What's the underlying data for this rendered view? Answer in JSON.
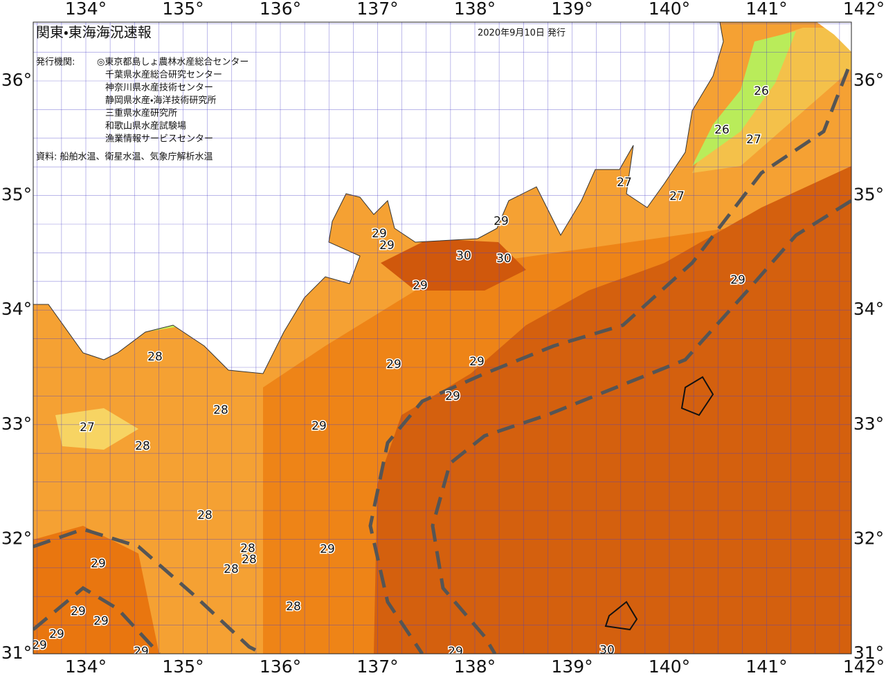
{
  "header": {
    "title": "関東・東海海況速報",
    "issued": "2020年9月10日 発行"
  },
  "issuers": {
    "label": "発行機関:",
    "names": [
      "◎東京都島しょ農林水産総合センター",
      "千葉県水産総合研究センター",
      "神奈川県水産技術センター",
      "静岡県水産・海洋技術研究所",
      "三重県水産研究所",
      "和歌山県水産試験場",
      "漁業情報サービスセンター"
    ]
  },
  "source": "資料: 船舶水温、衛星水温、気象庁解析水温",
  "longitude_labels": [
    {
      "value": 134,
      "label": "134°"
    },
    {
      "value": 135,
      "label": "135°"
    },
    {
      "value": 136,
      "label": "136°"
    },
    {
      "value": 137,
      "label": "137°"
    },
    {
      "value": 138,
      "label": "138°"
    },
    {
      "value": 139,
      "label": "139°"
    },
    {
      "value": 140,
      "label": "140°"
    },
    {
      "value": 141,
      "label": "141°"
    },
    {
      "value": 142,
      "label": "142°"
    }
  ],
  "latitude_labels": [
    {
      "value": 31,
      "label": "31°"
    },
    {
      "value": 32,
      "label": "32°"
    },
    {
      "value": 33,
      "label": "33°"
    },
    {
      "value": 34,
      "label": "34°"
    },
    {
      "value": 35,
      "label": "35°"
    },
    {
      "value": 36,
      "label": "36°"
    }
  ],
  "contour_labels": [
    26,
    26,
    27,
    27,
    27,
    29,
    29,
    29,
    30,
    30,
    29,
    29,
    28,
    29,
    29,
    29,
    28,
    29,
    27,
    28,
    28,
    29,
    28,
    28,
    29,
    28,
    28,
    29,
    29,
    29,
    29,
    29,
    29,
    30
  ]
}
